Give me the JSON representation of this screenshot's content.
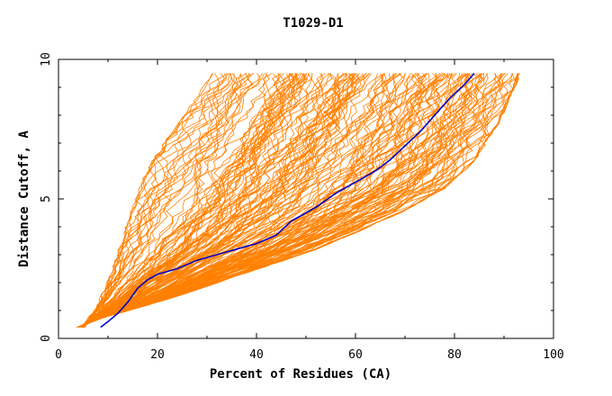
{
  "chart_data": {
    "type": "line",
    "title": "T1029-D1",
    "xlabel": "Percent of Residues (CA)",
    "ylabel": "Distance Cutoff, A",
    "xlim": [
      0,
      100
    ],
    "ylim": [
      0,
      10
    ],
    "xticks": [
      "0",
      "20",
      "40",
      "60",
      "80",
      "100"
    ],
    "yticks": [
      "0",
      "5",
      "10"
    ],
    "grid": false,
    "legend": "none",
    "colors": {
      "others": "#ff8000",
      "highlight": "#0000cc"
    },
    "others_band": {
      "lower_edge": [
        [
          4,
          0.4
        ],
        [
          8,
          0.7
        ],
        [
          14,
          1.0
        ],
        [
          22,
          1.4
        ],
        [
          32,
          2.0
        ],
        [
          42,
          2.6
        ],
        [
          52,
          3.2
        ],
        [
          60,
          3.8
        ],
        [
          70,
          4.6
        ],
        [
          78,
          5.4
        ],
        [
          84,
          6.4
        ],
        [
          89,
          7.8
        ],
        [
          92,
          9.0
        ],
        [
          93,
          9.5
        ]
      ],
      "upper_edge": [
        [
          5,
          0.4
        ],
        [
          7,
          0.9
        ],
        [
          9,
          1.6
        ],
        [
          11,
          2.4
        ],
        [
          13,
          3.5
        ],
        [
          15,
          4.6
        ],
        [
          17,
          5.6
        ],
        [
          20,
          6.6
        ],
        [
          24,
          7.6
        ],
        [
          28,
          8.6
        ],
        [
          31,
          9.5
        ]
      ],
      "curve_count": 180
    },
    "series": [
      {
        "x": [
          8.5,
          10,
          12,
          14,
          16,
          18,
          20,
          24,
          28,
          32,
          36,
          40,
          44,
          47,
          52,
          56,
          60,
          64,
          67,
          70,
          73,
          76,
          79,
          82,
          84
        ],
        "y": [
          0.4,
          0.6,
          0.9,
          1.3,
          1.8,
          2.1,
          2.3,
          2.5,
          2.8,
          3.0,
          3.2,
          3.4,
          3.7,
          4.2,
          4.7,
          5.2,
          5.6,
          6.0,
          6.4,
          6.9,
          7.4,
          8.0,
          8.6,
          9.1,
          9.5
        ]
      }
    ]
  }
}
